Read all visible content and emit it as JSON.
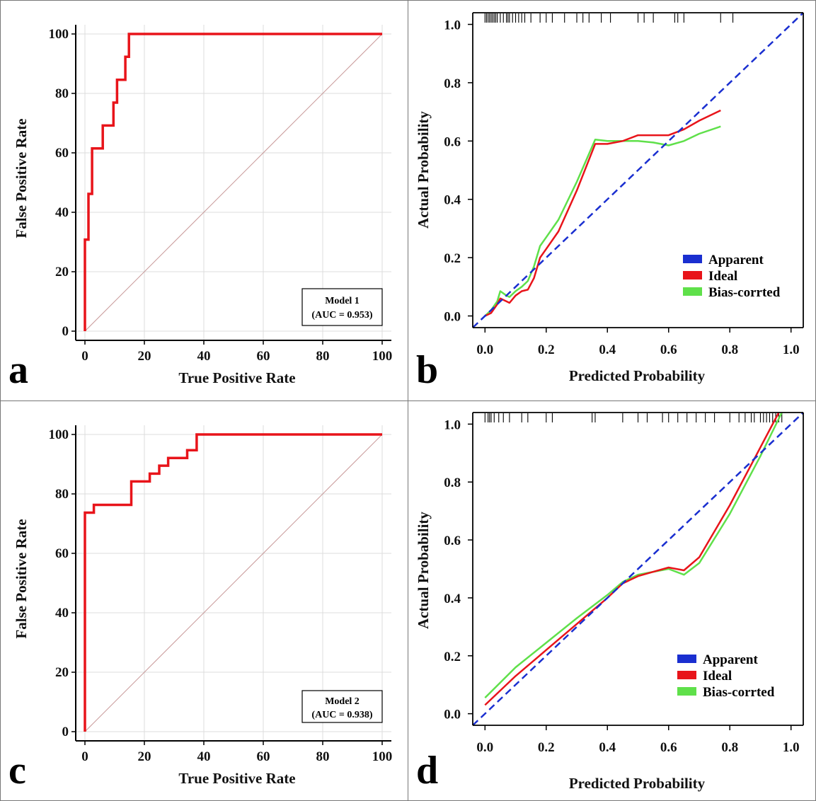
{
  "chart_data": [
    {
      "panel": "a",
      "type": "line",
      "title": "",
      "xlabel": "True Positive Rate",
      "ylabel": "False Positive Rate",
      "xlim": [
        0,
        100
      ],
      "ylim": [
        0,
        100
      ],
      "xticks": [
        0,
        20,
        40,
        60,
        80,
        100
      ],
      "yticks": [
        0,
        20,
        40,
        60,
        80,
        100
      ],
      "grid": true,
      "colors": {
        "roc": "#e8141a",
        "diagonal": "#c99a9a"
      },
      "legend": {
        "line1": "Model 1",
        "line2": "(AUC = 0.953)",
        "placement": "bottom-right"
      },
      "series": [
        {
          "name": "ROC",
          "x": [
            0,
            0,
            1.2,
            1.2,
            2.4,
            2.4,
            4.8,
            4.8,
            6,
            6,
            9.6,
            9.6,
            10.8,
            10.8,
            13.6,
            13.6,
            14.8,
            14.8,
            15.2,
            15.2,
            100
          ],
          "y": [
            0,
            30.8,
            30.8,
            46.2,
            46.2,
            61.5,
            61.5,
            61.5,
            61.5,
            69.2,
            69.2,
            76.9,
            76.9,
            84.6,
            84.6,
            92.3,
            92.3,
            100,
            100,
            100,
            100
          ]
        },
        {
          "name": "Reference",
          "x": [
            0,
            100
          ],
          "y": [
            0,
            100
          ]
        }
      ]
    },
    {
      "panel": "b",
      "type": "line",
      "title": "",
      "xlabel": "Predicted Probability",
      "ylabel": "Actual Probability",
      "xlim": [
        -0.04,
        1.04
      ],
      "ylim": [
        -0.04,
        1.04
      ],
      "xticks": [
        "0.0",
        "0.2",
        "0.4",
        "0.6",
        "0.8",
        "1.0"
      ],
      "yticks": [
        "0.0",
        "0.2",
        "0.4",
        "0.6",
        "0.8",
        "1.0"
      ],
      "grid": false,
      "rug": [
        0.0,
        0.005,
        0.01,
        0.015,
        0.02,
        0.025,
        0.03,
        0.035,
        0.04,
        0.05,
        0.06,
        0.07,
        0.075,
        0.08,
        0.09,
        0.1,
        0.11,
        0.12,
        0.13,
        0.15,
        0.18,
        0.2,
        0.22,
        0.26,
        0.3,
        0.32,
        0.34,
        0.38,
        0.41,
        0.5,
        0.52,
        0.55,
        0.62,
        0.63,
        0.65,
        0.77,
        0.81
      ],
      "legend": {
        "entries": [
          "Apparent",
          "Ideal",
          "Bias-corrted"
        ],
        "placement": "bottom-right"
      },
      "series": [
        {
          "name": "Apparent",
          "color": "#1a2fd0",
          "dashed": true,
          "x": [
            -0.04,
            1.04
          ],
          "y": [
            -0.04,
            1.04
          ]
        },
        {
          "name": "Ideal",
          "color": "#e8141a",
          "x": [
            0,
            0.02,
            0.04,
            0.05,
            0.07,
            0.08,
            0.1,
            0.12,
            0.14,
            0.16,
            0.18,
            0.2,
            0.24,
            0.3,
            0.36,
            0.4,
            0.45,
            0.5,
            0.55,
            0.6,
            0.65,
            0.7,
            0.77
          ],
          "y": [
            0,
            0.01,
            0.04,
            0.06,
            0.05,
            0.045,
            0.07,
            0.085,
            0.09,
            0.13,
            0.2,
            0.23,
            0.29,
            0.43,
            0.59,
            0.59,
            0.6,
            0.62,
            0.62,
            0.62,
            0.64,
            0.67,
            0.705
          ]
        },
        {
          "name": "Bias-corrted",
          "color": "#5fe04a",
          "x": [
            0,
            0.02,
            0.04,
            0.05,
            0.07,
            0.08,
            0.1,
            0.12,
            0.14,
            0.16,
            0.18,
            0.2,
            0.24,
            0.3,
            0.36,
            0.4,
            0.45,
            0.5,
            0.55,
            0.6,
            0.65,
            0.7,
            0.77
          ],
          "y": [
            0,
            0.02,
            0.05,
            0.085,
            0.07,
            0.065,
            0.085,
            0.1,
            0.12,
            0.17,
            0.24,
            0.27,
            0.33,
            0.46,
            0.605,
            0.6,
            0.6,
            0.6,
            0.595,
            0.585,
            0.6,
            0.625,
            0.65
          ]
        }
      ]
    },
    {
      "panel": "c",
      "type": "line",
      "title": "",
      "xlabel": "True Positive Rate",
      "ylabel": "False Positive Rate",
      "xlim": [
        0,
        100
      ],
      "ylim": [
        0,
        100
      ],
      "xticks": [
        0,
        20,
        40,
        60,
        80,
        100
      ],
      "yticks": [
        0,
        20,
        40,
        60,
        80,
        100
      ],
      "grid": true,
      "colors": {
        "roc": "#e8141a",
        "diagonal": "#c99a9a"
      },
      "legend": {
        "line1": "Model 2",
        "line2": "(AUC = 0.938)",
        "placement": "bottom-right"
      },
      "series": [
        {
          "name": "ROC",
          "x": [
            0,
            0,
            3,
            3,
            15.6,
            15.6,
            21.8,
            21.8,
            25,
            25,
            28,
            28,
            34.4,
            34.4,
            37.6,
            37.6,
            100
          ],
          "y": [
            0,
            73.7,
            73.7,
            76.3,
            76.3,
            84.2,
            84.2,
            86.8,
            86.8,
            89.5,
            89.5,
            92.1,
            92.1,
            94.7,
            94.7,
            100,
            100
          ]
        },
        {
          "name": "Reference",
          "x": [
            0,
            100
          ],
          "y": [
            0,
            100
          ]
        }
      ]
    },
    {
      "panel": "d",
      "type": "line",
      "title": "",
      "xlabel": "Predicted Probability",
      "ylabel": "Actual Probability",
      "xlim": [
        -0.04,
        1.04
      ],
      "ylim": [
        -0.04,
        1.04
      ],
      "xticks": [
        "0.0",
        "0.2",
        "0.4",
        "0.6",
        "0.8",
        "1.0"
      ],
      "yticks": [
        "0.0",
        "0.2",
        "0.4",
        "0.6",
        "0.8",
        "1.0"
      ],
      "grid": false,
      "rug": [
        0.0,
        0.01,
        0.015,
        0.02,
        0.03,
        0.045,
        0.06,
        0.08,
        0.12,
        0.14,
        0.2,
        0.22,
        0.35,
        0.36,
        0.45,
        0.5,
        0.53,
        0.58,
        0.6,
        0.63,
        0.66,
        0.69,
        0.72,
        0.75,
        0.8,
        0.83,
        0.85,
        0.87,
        0.88,
        0.9,
        0.91,
        0.92,
        0.93,
        0.94,
        0.95,
        0.96,
        0.97
      ],
      "legend": {
        "entries": [
          "Apparent",
          "Ideal",
          "Bias-corrted"
        ],
        "placement": "bottom-right"
      },
      "series": [
        {
          "name": "Apparent",
          "color": "#1a2fd0",
          "dashed": true,
          "x": [
            -0.04,
            1.04
          ],
          "y": [
            -0.04,
            1.04
          ]
        },
        {
          "name": "Ideal",
          "color": "#e8141a",
          "x": [
            0,
            0.1,
            0.2,
            0.3,
            0.4,
            0.45,
            0.5,
            0.55,
            0.6,
            0.65,
            0.7,
            0.8,
            0.9,
            0.96
          ],
          "y": [
            0.03,
            0.13,
            0.22,
            0.31,
            0.4,
            0.45,
            0.475,
            0.49,
            0.505,
            0.495,
            0.54,
            0.72,
            0.92,
            1.04
          ]
        },
        {
          "name": "Bias-corrted",
          "color": "#5fe04a",
          "x": [
            0,
            0.1,
            0.2,
            0.3,
            0.4,
            0.45,
            0.5,
            0.55,
            0.6,
            0.65,
            0.7,
            0.8,
            0.9,
            0.97
          ],
          "y": [
            0.055,
            0.16,
            0.245,
            0.33,
            0.41,
            0.455,
            0.48,
            0.49,
            0.5,
            0.48,
            0.52,
            0.69,
            0.89,
            1.04
          ]
        }
      ]
    }
  ]
}
